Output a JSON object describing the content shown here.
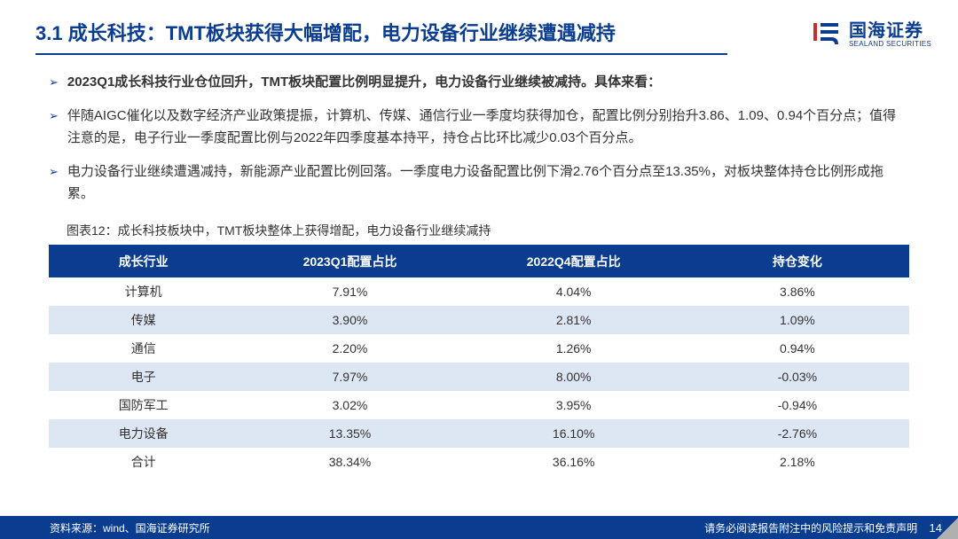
{
  "header": {
    "title": "3.1 成长科技：TMT板块获得大幅增配，电力设备行业继续遭遇减持",
    "logo_cn": "国海证券",
    "logo_en": "SEALAND SECURITIES"
  },
  "bullets": [
    {
      "bold": true,
      "text": "2023Q1成长科技行业仓位回升，TMT板块配置比例明显提升，电力设备行业继续被减持。具体来看："
    },
    {
      "bold": false,
      "text": "伴随AIGC催化以及数字经济产业政策提振，计算机、传媒、通信行业一季度均获得加仓，配置比例分别抬升3.86、1.09、0.94个百分点；值得注意的是，电子行业一季度配置比例与2022年四季度基本持平，持仓占比环比减少0.03个百分点。"
    },
    {
      "bold": false,
      "text": "电力设备行业继续遭遇减持，新能源产业配置比例回落。一季度电力设备配置比例下滑2.76个百分点至13.35%，对板块整体持仓比例形成拖累。"
    }
  ],
  "table": {
    "caption": "图表12：成长科技板块中，TMT板块整体上获得增配，电力设备行业继续减持",
    "columns": [
      "成长行业",
      "2023Q1配置占比",
      "2022Q4配置占比",
      "持仓变化"
    ],
    "rows": [
      [
        "计算机",
        "7.91%",
        "4.04%",
        "3.86%"
      ],
      [
        "传媒",
        "3.90%",
        "2.81%",
        "1.09%"
      ],
      [
        "通信",
        "2.20%",
        "1.26%",
        "0.94%"
      ],
      [
        "电子",
        "7.97%",
        "8.00%",
        "-0.03%"
      ],
      [
        "国防军工",
        "3.02%",
        "3.95%",
        "-0.94%"
      ],
      [
        "电力设备",
        "13.35%",
        "16.10%",
        "-2.76%"
      ],
      [
        "合计",
        "38.34%",
        "36.16%",
        "2.18%"
      ]
    ],
    "header_bg": "#0a3d8f",
    "header_fg": "#ffffff",
    "row_even_bg": "#dde6f3",
    "row_odd_bg": "#ffffff"
  },
  "footer": {
    "source": "资料来源：wind、国海证券研究所",
    "disclaimer": "请务必阅读报告附注中的风险提示和免责声明",
    "page": "14"
  },
  "colors": {
    "brand": "#0a3d8f",
    "text": "#333333",
    "alt_row": "#dde6f3"
  }
}
